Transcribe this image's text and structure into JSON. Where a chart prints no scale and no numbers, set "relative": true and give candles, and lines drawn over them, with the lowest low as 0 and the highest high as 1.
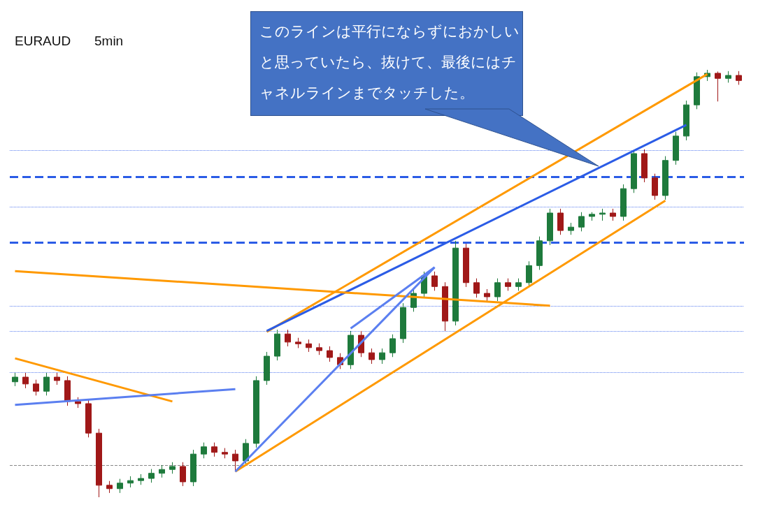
{
  "chart_data": {
    "type": "candlestick",
    "title": "EURAUD",
    "subtitle": "5min",
    "relative": true,
    "annotations": [
      "このラインは平行にならずにおかしいと思っていたら、抜けて、最後にはチャネルラインまでタッチした。"
    ],
    "categories": [
      null,
      null,
      null,
      null,
      null,
      null,
      null,
      null,
      null,
      null,
      null,
      null,
      null,
      null,
      null,
      null,
      null,
      null,
      null,
      null,
      null,
      null,
      null,
      null,
      null,
      null,
      null,
      null,
      null,
      null,
      null,
      null,
      null,
      null,
      null,
      null,
      null,
      null,
      null,
      null,
      null,
      null,
      null,
      null,
      null,
      null,
      null,
      null,
      null,
      null,
      null,
      null,
      null,
      null,
      null,
      null,
      null,
      null,
      null,
      null,
      null,
      null,
      null,
      null,
      null,
      null,
      null,
      null,
      null,
      null
    ],
    "ohlc": [
      [
        0.27,
        0.291,
        0.26,
        0.281
      ],
      [
        0.281,
        0.291,
        0.255,
        0.265
      ],
      [
        0.265,
        0.275,
        0.238,
        0.248
      ],
      [
        0.248,
        0.291,
        0.238,
        0.281
      ],
      [
        0.281,
        0.291,
        0.263,
        0.273
      ],
      [
        0.273,
        0.283,
        0.214,
        0.224
      ],
      [
        0.224,
        0.234,
        0.209,
        0.219
      ],
      [
        0.219,
        0.229,
        0.14,
        0.15
      ],
      [
        0.15,
        0.16,
        0,
        0.028
      ],
      [
        0.028,
        0.038,
        0.01,
        0.02
      ],
      [
        0.02,
        0.043,
        0.01,
        0.033
      ],
      [
        0.033,
        0.049,
        0.023,
        0.039
      ],
      [
        0.039,
        0.054,
        0.029,
        0.044
      ],
      [
        0.044,
        0.066,
        0.034,
        0.056
      ],
      [
        0.056,
        0.075,
        0.046,
        0.065
      ],
      [
        0.065,
        0.082,
        0.055,
        0.072
      ],
      [
        0.072,
        0.082,
        0.026,
        0.036
      ],
      [
        0.036,
        0.111,
        0.026,
        0.101
      ],
      [
        0.101,
        0.128,
        0.091,
        0.118
      ],
      [
        0.118,
        0.128,
        0.095,
        0.105
      ],
      [
        0.105,
        0.115,
        0.091,
        0.101
      ],
      [
        0.101,
        0.111,
        0.06,
        0.085
      ],
      [
        0.085,
        0.136,
        0.075,
        0.126
      ],
      [
        0.126,
        0.283,
        0.116,
        0.273
      ],
      [
        0.273,
        0.34,
        0.263,
        0.33
      ],
      [
        0.33,
        0.392,
        0.32,
        0.382
      ],
      [
        0.382,
        0.392,
        0.353,
        0.363
      ],
      [
        0.363,
        0.373,
        0.349,
        0.359
      ],
      [
        0.359,
        0.369,
        0.34,
        0.35
      ],
      [
        0.35,
        0.36,
        0.333,
        0.343
      ],
      [
        0.343,
        0.353,
        0.317,
        0.327
      ],
      [
        0.327,
        0.337,
        0.3,
        0.31
      ],
      [
        0.31,
        0.389,
        0.3,
        0.379
      ],
      [
        0.379,
        0.389,
        0.328,
        0.338
      ],
      [
        0.338,
        0.348,
        0.312,
        0.322
      ],
      [
        0.322,
        0.348,
        0.312,
        0.338
      ],
      [
        0.338,
        0.381,
        0.328,
        0.371
      ],
      [
        0.371,
        0.454,
        0.361,
        0.444
      ],
      [
        0.444,
        0.487,
        0.434,
        0.477
      ],
      [
        0.477,
        0.528,
        0.467,
        0.518
      ],
      [
        0.518,
        0.528,
        0.483,
        0.493
      ],
      [
        0.493,
        0.503,
        0.389,
        0.412
      ],
      [
        0.412,
        0.6,
        0.402,
        0.583
      ],
      [
        0.583,
        0.593,
        0.492,
        0.502
      ],
      [
        0.502,
        0.512,
        0.467,
        0.477
      ],
      [
        0.477,
        0.487,
        0.459,
        0.469
      ],
      [
        0.469,
        0.512,
        0.459,
        0.502
      ],
      [
        0.502,
        0.512,
        0.483,
        0.493
      ],
      [
        0.493,
        0.512,
        0.483,
        0.502
      ],
      [
        0.502,
        0.552,
        0.492,
        0.542
      ],
      [
        0.542,
        0.61,
        0.532,
        0.6
      ],
      [
        0.6,
        0.675,
        0.59,
        0.665
      ],
      [
        0.665,
        0.675,
        0.614,
        0.624
      ],
      [
        0.624,
        0.642,
        0.614,
        0.632
      ],
      [
        0.632,
        0.667,
        0.622,
        0.657
      ],
      [
        0.657,
        0.667,
        0.647,
        0.662
      ],
      [
        0.662,
        0.675,
        0.647,
        0.665
      ],
      [
        0.665,
        0.675,
        0.647,
        0.657
      ],
      [
        0.657,
        0.732,
        0.647,
        0.722
      ],
      [
        0.722,
        0.812,
        0.712,
        0.804
      ],
      [
        0.804,
        0.814,
        0.737,
        0.747
      ],
      [
        0.747,
        0.757,
        0.696,
        0.706
      ],
      [
        0.706,
        0.798,
        0.696,
        0.788
      ],
      [
        0.788,
        0.855,
        0.778,
        0.845
      ],
      [
        0.845,
        0.928,
        0.835,
        0.918
      ],
      [
        0.918,
        0.994,
        0.908,
        0.984
      ],
      [
        0.984,
        1,
        0.974,
        0.992
      ],
      [
        0.992,
        0.996,
        0.926,
        0.98
      ],
      [
        0.98,
        0.997,
        0.97,
        0.987
      ],
      [
        0.987,
        0.997,
        0.965,
        0.975
      ]
    ],
    "series": [
      {
        "type": "line",
        "color": "#ff9900",
        "values": [
          null,
          null,
          null,
          null,
          null,
          null,
          null,
          null,
          null,
          null,
          null,
          null,
          null,
          null,
          null,
          null,
          null,
          null,
          null,
          null,
          null,
          null,
          null,
          null,
          0.387,
          null,
          null,
          null,
          null,
          null,
          null,
          null,
          null,
          null,
          null,
          null,
          null,
          null,
          null,
          null,
          null,
          null,
          null,
          null,
          null,
          null,
          null,
          null,
          null,
          null,
          null,
          null,
          null,
          null,
          null,
          null,
          null,
          null,
          null,
          null,
          null,
          null,
          null,
          null,
          null,
          null,
          0.99,
          null,
          null,
          null
        ]
      },
      {
        "type": "line",
        "color": "#ff9900",
        "values": [
          null,
          null,
          null,
          null,
          null,
          null,
          null,
          null,
          null,
          null,
          null,
          null,
          null,
          null,
          null,
          null,
          null,
          null,
          null,
          null,
          null,
          0.06,
          null,
          null,
          null,
          null,
          null,
          null,
          null,
          null,
          null,
          null,
          null,
          null,
          null,
          null,
          null,
          null,
          null,
          null,
          null,
          null,
          null,
          null,
          null,
          null,
          null,
          null,
          null,
          null,
          null,
          null,
          null,
          null,
          null,
          null,
          null,
          null,
          null,
          null,
          null,
          null,
          0.694,
          null,
          null,
          null,
          null,
          null,
          null,
          null
        ]
      },
      {
        "type": "line",
        "color": "#2b5ce6",
        "values": [
          null,
          null,
          null,
          null,
          null,
          null,
          null,
          null,
          null,
          null,
          null,
          null,
          null,
          null,
          null,
          null,
          null,
          null,
          null,
          null,
          null,
          null,
          null,
          null,
          0.389,
          null,
          null,
          null,
          null,
          null,
          null,
          null,
          null,
          null,
          null,
          null,
          null,
          null,
          null,
          null,
          null,
          null,
          null,
          null,
          null,
          null,
          null,
          null,
          null,
          null,
          null,
          null,
          null,
          null,
          null,
          null,
          null,
          null,
          null,
          null,
          null,
          null,
          null,
          null,
          0.871,
          null,
          null,
          null,
          null,
          null
        ]
      },
      {
        "type": "line",
        "color": "#ff9900",
        "values": [
          0.529,
          null,
          null,
          null,
          null,
          null,
          null,
          null,
          null,
          null,
          null,
          null,
          null,
          null,
          null,
          null,
          null,
          null,
          null,
          null,
          null,
          null,
          null,
          null,
          null,
          null,
          null,
          null,
          null,
          null,
          null,
          null,
          null,
          null,
          null,
          null,
          null,
          null,
          null,
          null,
          null,
          null,
          null,
          null,
          null,
          null,
          null,
          null,
          null,
          null,
          null,
          0.448,
          null,
          null,
          null,
          null,
          null,
          null,
          null,
          null,
          null,
          null,
          null,
          null,
          null,
          null,
          null,
          null,
          null,
          null
        ]
      },
      {
        "type": "line",
        "color": "#ff9900",
        "values": [
          0.325,
          null,
          null,
          null,
          null,
          null,
          null,
          null,
          null,
          null,
          null,
          null,
          null,
          null,
          null,
          0.224,
          null,
          null,
          null,
          null,
          null,
          null,
          null,
          null,
          null,
          null,
          null,
          null,
          null,
          null,
          null,
          null,
          null,
          null,
          null,
          null,
          null,
          null,
          null,
          null,
          null,
          null,
          null,
          null,
          null,
          null,
          null,
          null,
          null,
          null,
          null,
          null,
          null,
          null,
          null,
          null,
          null,
          null,
          null,
          null,
          null,
          null,
          null,
          null,
          null,
          null,
          null,
          null,
          null,
          null
        ]
      },
      {
        "type": "line",
        "color": "#5b7ff0",
        "values": [
          0.216,
          null,
          null,
          null,
          null,
          null,
          null,
          null,
          null,
          null,
          null,
          null,
          null,
          null,
          null,
          null,
          null,
          null,
          null,
          null,
          null,
          0.253,
          null,
          null,
          null,
          null,
          null,
          null,
          null,
          null,
          null,
          null,
          null,
          null,
          null,
          null,
          null,
          null,
          null,
          null,
          null,
          null,
          null,
          null,
          null,
          null,
          null,
          null,
          null,
          null,
          null,
          null,
          null,
          null,
          null,
          null,
          null,
          null,
          null,
          null,
          null,
          null,
          null,
          null,
          null,
          null,
          null,
          null,
          null,
          null
        ]
      },
      {
        "type": "line",
        "color": "#5b7ff0",
        "values": [
          null,
          null,
          null,
          null,
          null,
          null,
          null,
          null,
          null,
          null,
          null,
          null,
          null,
          null,
          null,
          null,
          null,
          null,
          null,
          null,
          null,
          0.06,
          null,
          null,
          null,
          null,
          null,
          null,
          null,
          null,
          null,
          null,
          null,
          null,
          null,
          null,
          null,
          null,
          null,
          null,
          0.538,
          null,
          null,
          null,
          null,
          null,
          null,
          null,
          null,
          null,
          null,
          null,
          null,
          null,
          null,
          null,
          null,
          null,
          null,
          null,
          null,
          null,
          null,
          null,
          null,
          null,
          null,
          null,
          null,
          null
        ]
      },
      {
        "type": "line",
        "color": "#5b7ff0",
        "values": [
          null,
          null,
          null,
          null,
          null,
          null,
          null,
          null,
          null,
          null,
          null,
          null,
          null,
          null,
          null,
          null,
          null,
          null,
          null,
          null,
          null,
          null,
          null,
          null,
          null,
          null,
          null,
          null,
          null,
          null,
          null,
          null,
          0.395,
          null,
          null,
          null,
          null,
          null,
          null,
          null,
          0.538,
          null,
          null,
          null,
          null,
          null,
          null,
          null,
          null,
          null,
          null,
          null,
          null,
          null,
          null,
          null,
          null,
          null,
          null,
          null,
          null,
          null,
          null,
          null,
          null,
          null,
          null,
          null,
          null,
          null
        ]
      }
    ],
    "ref_lines": [
      {
        "axis": "y",
        "value": 0.75,
        "color": "#2b5ce6",
        "line_style": "dashed"
      },
      {
        "axis": "y",
        "value": 0.596,
        "color": "#2b5ce6",
        "line_style": "dashed"
      },
      {
        "axis": "y",
        "value": 0.812,
        "color": "#5b7ff0",
        "line_style": "dotted"
      },
      {
        "axis": "y",
        "value": 0.68,
        "color": "#5b7ff0",
        "line_style": "dotted"
      },
      {
        "axis": "y",
        "value": 0.448,
        "color": "#5b7ff0",
        "line_style": "dotted"
      },
      {
        "axis": "y",
        "value": 0.389,
        "color": "#5b7ff0",
        "line_style": "dotted"
      },
      {
        "axis": "y",
        "value": 0.292,
        "color": "#5b7ff0",
        "line_style": "dotted"
      },
      {
        "axis": "y",
        "value": 0.075,
        "color": "#888888",
        "line_style": "dashed"
      }
    ]
  }
}
